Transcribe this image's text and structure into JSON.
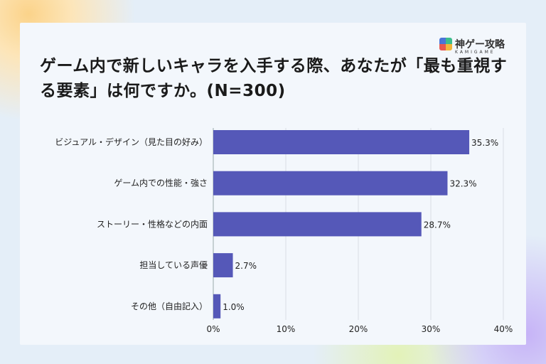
{
  "logo": {
    "name": "神ゲー攻略",
    "sub": "KAMIGAME"
  },
  "chart_data": {
    "type": "bar",
    "orientation": "horizontal",
    "title": "ゲーム内で新しいキャラを入手する際、あなたが「最も重視する要素」は何ですか。(N=300)",
    "categories": [
      "ビジュアル・デザイン（見た目の好み）",
      "ゲーム内での性能・強さ",
      "ストーリー・性格などの内面",
      "担当している声優",
      "その他（自由記入）"
    ],
    "values": [
      35.3,
      32.3,
      28.7,
      2.7,
      1.0
    ],
    "value_labels": [
      "35.3%",
      "32.3%",
      "28.7%",
      "2.7%",
      "1.0%"
    ],
    "xlim": [
      0,
      40
    ],
    "xticks": [
      "0%",
      "10%",
      "20%",
      "30%",
      "40%"
    ],
    "grid": true,
    "bar_color": "#5558b8"
  }
}
